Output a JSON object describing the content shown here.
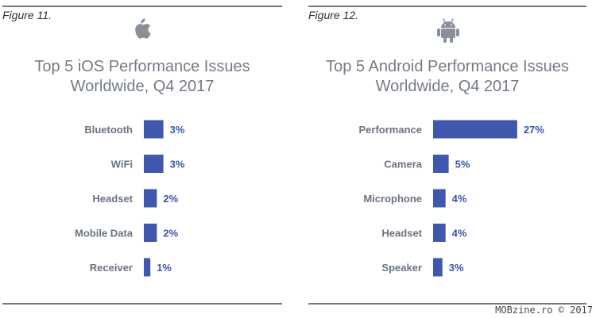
{
  "colors": {
    "bar": "#3f58ad",
    "value_text": "#3a55a8",
    "category_text": "#6a7380",
    "title_text": "#737b86"
  },
  "watermark": "MOBzine.ro © 2017",
  "figures": [
    {
      "figure_label": "Figure 11.",
      "logo_icon": "apple-logo-icon",
      "title_line1": "Top 5 iOS Performance Issues",
      "title_line2": "Worldwide, Q4 2017"
    },
    {
      "figure_label": "Figure 12.",
      "logo_icon": "android-logo-icon",
      "title_line1": "Top 5 Android Performance Issues",
      "title_line2": "Worldwide, Q4 2017"
    }
  ],
  "chart_data": [
    {
      "type": "bar",
      "orientation": "horizontal",
      "title": "Top 5 iOS Performance Issues Worldwide, Q4 2017",
      "categories": [
        "Bluetooth",
        "WiFi",
        "Headset",
        "Mobile Data",
        "Receiver"
      ],
      "values": [
        3,
        3,
        2,
        2,
        1
      ],
      "value_labels": [
        "3%",
        "3%",
        "2%",
        "2%",
        "1%"
      ],
      "unit": "%",
      "grid": false
    },
    {
      "type": "bar",
      "orientation": "horizontal",
      "title": "Top 5 Android Performance Issues Worldwide, Q4 2017",
      "categories": [
        "Performance",
        "Camera",
        "Microphone",
        "Headset",
        "Speaker"
      ],
      "values": [
        27,
        5,
        4,
        4,
        3
      ],
      "value_labels": [
        "27%",
        "5%",
        "4%",
        "4%",
        "3%"
      ],
      "unit": "%",
      "grid": false
    }
  ]
}
